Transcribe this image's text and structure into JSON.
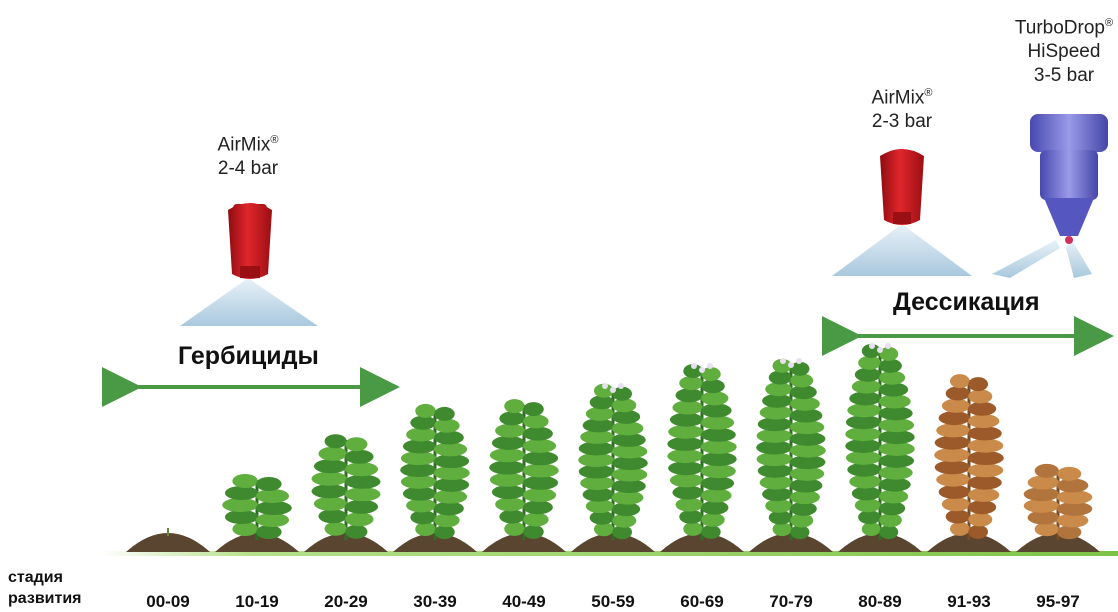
{
  "nozzles": [
    {
      "name": "AirMix",
      "mark": "®",
      "pressure": "2-4 bar"
    },
    {
      "name": "AirMix",
      "mark": "®",
      "pressure": "2-3 bar"
    },
    {
      "name": "TurboDrop",
      "mark": "®",
      "line2": "HiSpeed",
      "pressure": "3-5 bar"
    }
  ],
  "groups": {
    "herbicides": "Гербициды",
    "desiccation": "Дессикация"
  },
  "stages": {
    "title_line1": "стадия",
    "title_line2": "развития",
    "codes": [
      "00-09",
      "10-19",
      "20-29",
      "30-39",
      "40-49",
      "50-59",
      "60-69",
      "70-79",
      "80-89",
      "91-93",
      "95-97"
    ]
  },
  "colors": {
    "arrow": "#4a9a45",
    "nozzle_red": "#c4161c",
    "nozzle_blue": "#5a5ac8",
    "spray": "#b8d4e6",
    "soil": "#5a4630",
    "ground": "#8ccc5a"
  }
}
